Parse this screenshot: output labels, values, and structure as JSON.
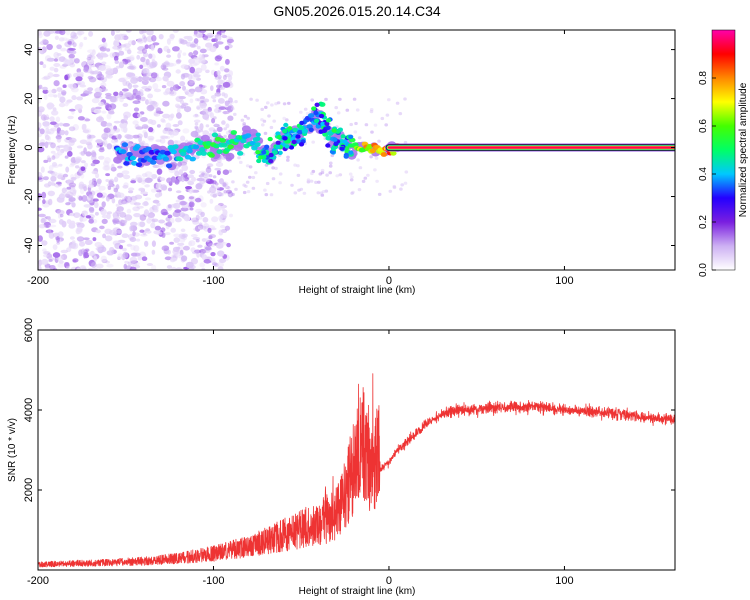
{
  "chart_data": [
    {
      "type": "heatmap",
      "title": "GN05.2026.015.20.14.C34",
      "xlabel": "Height of straight line (km)",
      "ylabel": "Frequency (Hz)",
      "xlim": [
        -200,
        163
      ],
      "ylim": [
        -50,
        48
      ],
      "xticks": [
        -200,
        -100,
        0,
        100
      ],
      "yticks": [
        -40,
        -20,
        0,
        20,
        40
      ],
      "grid": false,
      "colorbar": {
        "label": "Normalized spectral amplitude",
        "range": [
          0.0,
          1.0
        ],
        "ticks": [
          "0.0",
          "0.2",
          "0.4",
          "0.6",
          "0.8"
        ],
        "colors": [
          "#ffffff",
          "#cdb0f3",
          "#7a1fe0",
          "#2400ff",
          "#00c8ff",
          "#00ff66",
          "#44ff00",
          "#ffff00",
          "#ff8800",
          "#ff0000",
          "#ff00aa"
        ]
      },
      "main_line": {
        "x_start": 0,
        "x_end": 163,
        "frequency": 0,
        "amplitude": 0.95
      },
      "spectral_ridge": [
        {
          "x": -150,
          "f": -3,
          "a": 0.4
        },
        {
          "x": -140,
          "f": -4,
          "a": 0.4
        },
        {
          "x": -130,
          "f": -3,
          "a": 0.38
        },
        {
          "x": -120,
          "f": -2,
          "a": 0.45
        },
        {
          "x": -110,
          "f": -1,
          "a": 0.5
        },
        {
          "x": -100,
          "f": 0,
          "a": 0.55
        },
        {
          "x": -90,
          "f": 2,
          "a": 0.55
        },
        {
          "x": -80,
          "f": 4,
          "a": 0.5
        },
        {
          "x": -70,
          "f": -4,
          "a": 0.45
        },
        {
          "x": -60,
          "f": 3,
          "a": 0.5
        },
        {
          "x": -50,
          "f": 6,
          "a": 0.45
        },
        {
          "x": -45,
          "f": 9,
          "a": 0.4
        },
        {
          "x": -40,
          "f": 12,
          "a": 0.45
        },
        {
          "x": -35,
          "f": 7,
          "a": 0.5
        },
        {
          "x": -30,
          "f": 3,
          "a": 0.45
        },
        {
          "x": -20,
          "f": 0,
          "a": 0.6
        },
        {
          "x": -10,
          "f": 0,
          "a": 0.85
        },
        {
          "x": -5,
          "f": -1,
          "a": 0.9
        },
        {
          "x": 5,
          "f": 0,
          "a": 0.85
        }
      ]
    },
    {
      "type": "line",
      "xlabel": "Height of straight line (km)",
      "ylabel": "SNR (10 * v/v)",
      "xlim": [
        -200,
        163
      ],
      "ylim": [
        0,
        6000
      ],
      "xticks": [
        -200,
        -100,
        0,
        100
      ],
      "yticks": [
        2000,
        4000,
        6000
      ],
      "grid": false,
      "color": "#ee3333",
      "series": [
        {
          "name": "SNR",
          "points": [
            [
              -200,
              120
            ],
            [
              -180,
              140
            ],
            [
              -160,
              160
            ],
            [
              -140,
              190
            ],
            [
              -120,
              250
            ],
            [
              -100,
              350
            ],
            [
              -80,
              500
            ],
            [
              -60,
              750
            ],
            [
              -40,
              1000
            ],
            [
              -30,
              1200
            ],
            [
              -25,
              1600
            ],
            [
              -20,
              2200
            ],
            [
              -15,
              2800
            ],
            [
              -10,
              2200
            ],
            [
              -5,
              2500
            ],
            [
              0,
              2700
            ],
            [
              5,
              3000
            ],
            [
              10,
              3200
            ],
            [
              20,
              3600
            ],
            [
              30,
              3900
            ],
            [
              40,
              4000
            ],
            [
              60,
              4050
            ],
            [
              80,
              4100
            ],
            [
              100,
              4000
            ],
            [
              120,
              3950
            ],
            [
              140,
              3850
            ],
            [
              163,
              3750
            ]
          ]
        }
      ]
    }
  ]
}
